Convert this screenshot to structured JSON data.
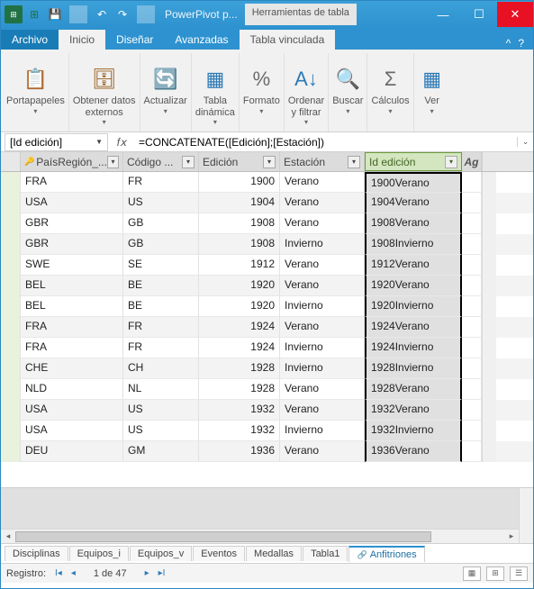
{
  "title": "PowerPivot p...",
  "context_tab": "Herramientas de tabla",
  "tabs": {
    "file": "Archivo",
    "home": "Inicio",
    "design": "Diseñar",
    "advanced": "Avanzadas",
    "linked": "Tabla vinculada"
  },
  "ribbon": {
    "clipboard": "Portapapeles",
    "getdata": "Obtener datos\nexternos",
    "refresh": "Actualizar",
    "pivot": "Tabla\ndinámica",
    "format": "Formato",
    "sort": "Ordenar\ny filtrar",
    "find": "Buscar",
    "calc": "Cálculos",
    "view": "Ver"
  },
  "namebox": "[Id edición]",
  "formula": "=CONCATENATE([Edición];[Estación])",
  "columns": {
    "pais": "PaísRegión_...",
    "codigo": "Código ...",
    "edicion": "Edición",
    "estacion": "Estación",
    "id": "Id edición",
    "add": "Ag"
  },
  "rows": [
    {
      "pais": "FRA",
      "codigo": "FR",
      "edicion": "1900",
      "estacion": "Verano",
      "id": "1900Verano"
    },
    {
      "pais": "USA",
      "codigo": "US",
      "edicion": "1904",
      "estacion": "Verano",
      "id": "1904Verano"
    },
    {
      "pais": "GBR",
      "codigo": "GB",
      "edicion": "1908",
      "estacion": "Verano",
      "id": "1908Verano"
    },
    {
      "pais": "GBR",
      "codigo": "GB",
      "edicion": "1908",
      "estacion": "Invierno",
      "id": "1908Invierno"
    },
    {
      "pais": "SWE",
      "codigo": "SE",
      "edicion": "1912",
      "estacion": "Verano",
      "id": "1912Verano"
    },
    {
      "pais": "BEL",
      "codigo": "BE",
      "edicion": "1920",
      "estacion": "Verano",
      "id": "1920Verano"
    },
    {
      "pais": "BEL",
      "codigo": "BE",
      "edicion": "1920",
      "estacion": "Invierno",
      "id": "1920Invierno"
    },
    {
      "pais": "FRA",
      "codigo": "FR",
      "edicion": "1924",
      "estacion": "Verano",
      "id": "1924Verano"
    },
    {
      "pais": "FRA",
      "codigo": "FR",
      "edicion": "1924",
      "estacion": "Invierno",
      "id": "1924Invierno"
    },
    {
      "pais": "CHE",
      "codigo": "CH",
      "edicion": "1928",
      "estacion": "Invierno",
      "id": "1928Invierno"
    },
    {
      "pais": "NLD",
      "codigo": "NL",
      "edicion": "1928",
      "estacion": "Verano",
      "id": "1928Verano"
    },
    {
      "pais": "USA",
      "codigo": "US",
      "edicion": "1932",
      "estacion": "Verano",
      "id": "1932Verano"
    },
    {
      "pais": "USA",
      "codigo": "US",
      "edicion": "1932",
      "estacion": "Invierno",
      "id": "1932Invierno"
    },
    {
      "pais": "DEU",
      "codigo": "GM",
      "edicion": "1936",
      "estacion": "Verano",
      "id": "1936Verano"
    }
  ],
  "sheets": [
    "Disciplinas",
    "Equipos_i",
    "Equipos_v",
    "Eventos",
    "Medallas",
    "Tabla1",
    "Anfitriones"
  ],
  "status": {
    "record_label": "Registro:",
    "record_pos": "1 de 47"
  },
  "colors": {
    "accent": "#2d92cf",
    "sel_green": "#d4e6c0"
  }
}
